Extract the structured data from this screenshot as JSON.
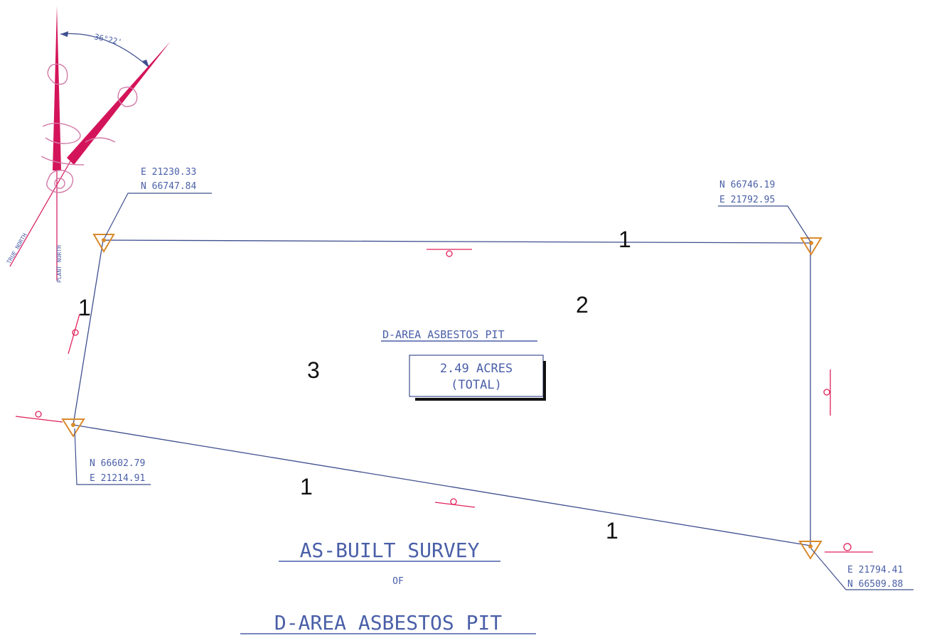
{
  "diagram": {
    "corners": {
      "nw": {
        "line1": "E 21230.33",
        "line2": "N 66747.84"
      },
      "ne": {
        "line1": "N 66746.19",
        "line2": "E 21792.95"
      },
      "sw": {
        "line1": "N 66602.79",
        "line2": "E 21214.91"
      },
      "se": {
        "line1": "E 21794.41",
        "line2": "N 66509.88"
      }
    },
    "north_arrow": {
      "angle": "36°22'",
      "true_north": "TRUE NORTH",
      "plant_north": "PLANT NORTH"
    },
    "area_label": "D-AREA ASBESTOS PIT",
    "area_value": "2.49 ACRES",
    "area_note": "(TOTAL)",
    "callouts": [
      "1",
      "1",
      "1",
      "1",
      "2",
      "3"
    ],
    "title": {
      "line1": "AS-BUILT SURVEY",
      "line2": "OF",
      "line3": "D-AREA ASBESTOS PIT"
    }
  },
  "colors": {
    "line": "#3f4f8f",
    "text": "#4a5fa8",
    "markers": "#e0205a",
    "monuments": "#d98a2a",
    "north_arrow": "#d4145a"
  }
}
